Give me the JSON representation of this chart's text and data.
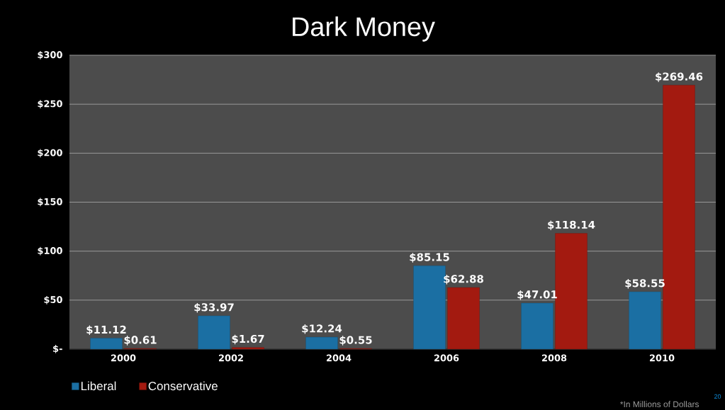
{
  "chart_data": {
    "type": "bar",
    "title": "Dark Money",
    "categories": [
      "2000",
      "2002",
      "2004",
      "2006",
      "2008",
      "2010"
    ],
    "series": [
      {
        "name": "Liberal",
        "color": "#1b6fa3",
        "values": [
          11.12,
          33.97,
          12.24,
          85.15,
          47.01,
          58.55
        ],
        "value_labels": [
          "$11.12",
          "$33.97",
          "$12.24",
          "$85.15",
          "$47.01",
          "$58.55"
        ]
      },
      {
        "name": "Conservative",
        "color": "#a31a10",
        "values": [
          0.61,
          1.67,
          0.55,
          62.88,
          118.14,
          269.46
        ],
        "value_labels": [
          "$0.61",
          "$1.67",
          "$0.55",
          "$62.88",
          "$118.14",
          "$269.46"
        ]
      }
    ],
    "ylim": [
      0,
      300
    ],
    "yticks": [
      {
        "value": 0,
        "label": "$-"
      },
      {
        "value": 50,
        "label": "$50"
      },
      {
        "value": 100,
        "label": "$100"
      },
      {
        "value": 150,
        "label": "$150"
      },
      {
        "value": 200,
        "label": "$200"
      },
      {
        "value": 250,
        "label": "$250"
      },
      {
        "value": 300,
        "label": "$300"
      }
    ],
    "grid": "y",
    "legend": "bottom left",
    "annotations": [
      "*In Millions of Dollars",
      "20"
    ]
  }
}
